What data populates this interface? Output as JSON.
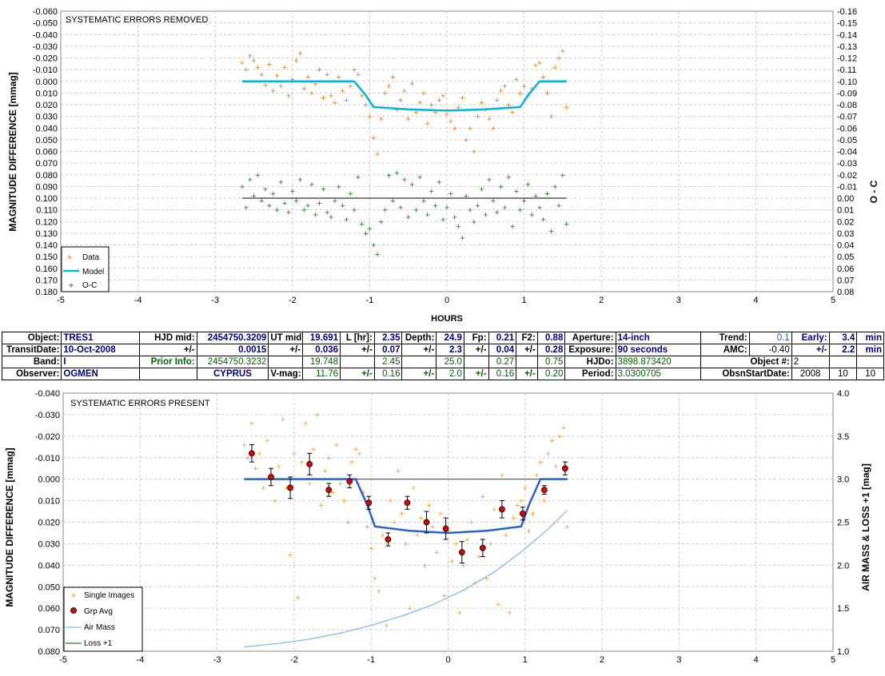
{
  "colors": {
    "data": "#e07b10",
    "model": "#00b4e6",
    "oc": "#1c7a1c",
    "single": "#f0a020",
    "grp": "#e00000",
    "model2": "#2a5fd6",
    "airmass": "#7ab8e8",
    "loss": "#1c7a1c"
  },
  "chart_data": [
    {
      "type": "scatter",
      "title": "SYSTEMATIC ERRORS REMOVED",
      "xlabel": "HOURS",
      "ylabel": "MAGNITUDE DIFFERENCE [mmag]",
      "y2label": "O - C",
      "xlim": [
        -5,
        5
      ],
      "ylim": [
        -0.06,
        0.18
      ],
      "y2lim": [
        -0.16,
        0.08
      ],
      "xticks": [
        "-5",
        "-4",
        "-3",
        "-2",
        "-1",
        "0",
        "1",
        "2",
        "3",
        "4",
        "5"
      ],
      "yticks": [
        "-0.060",
        "-0.050",
        "-0.040",
        "-0.030",
        "-0.020",
        "-0.010",
        "0.000",
        "0.010",
        "0.020",
        "0.030",
        "0.040",
        "0.050",
        "0.060",
        "0.070",
        "0.080",
        "0.090",
        "0.100",
        "0.110",
        "0.120",
        "0.130",
        "0.140",
        "0.150",
        "0.160",
        "0.170",
        "0.180"
      ],
      "y2ticks": [
        "-0.16",
        "-0.15",
        "-0.14",
        "-0.13",
        "-0.12",
        "-0.11",
        "-0.10",
        "-0.09",
        "-0.08",
        "-0.07",
        "-0.06",
        "-0.05",
        "-0.04",
        "-0.03",
        "-0.02",
        "-0.01",
        "0.00",
        "0.01",
        "0.02",
        "0.03",
        "0.04",
        "0.05",
        "0.06",
        "0.07",
        "0.08"
      ],
      "grid": true,
      "legend_position": "bottom-left",
      "legend": [
        "Data",
        "Model",
        "O-C"
      ],
      "series": [
        {
          "name": "Data",
          "x": [
            -2.65,
            -2.6,
            -2.55,
            -2.5,
            -2.45,
            -2.4,
            -2.35,
            -2.3,
            -2.25,
            -2.2,
            -2.15,
            -2.1,
            -2.05,
            -2.0,
            -1.95,
            -1.9,
            -1.85,
            -1.8,
            -1.75,
            -1.7,
            -1.65,
            -1.6,
            -1.55,
            -1.5,
            -1.45,
            -1.4,
            -1.35,
            -1.3,
            -1.25,
            -1.2,
            -1.15,
            -1.1,
            -1.05,
            -1.0,
            -0.95,
            -0.9,
            -0.85,
            -0.8,
            -0.75,
            -0.7,
            -0.65,
            -0.6,
            -0.55,
            -0.5,
            -0.45,
            -0.4,
            -0.35,
            -0.3,
            -0.25,
            -0.2,
            -0.15,
            -0.1,
            -0.05,
            0.0,
            0.05,
            0.1,
            0.15,
            0.2,
            0.25,
            0.3,
            0.35,
            0.4,
            0.45,
            0.5,
            0.55,
            0.6,
            0.65,
            0.7,
            0.75,
            0.8,
            0.85,
            0.9,
            0.95,
            1.0,
            1.05,
            1.1,
            1.15,
            1.2,
            1.25,
            1.3,
            1.35,
            1.4,
            1.45,
            1.5,
            1.55
          ],
          "y": [
            -0.016,
            -0.01,
            -0.022,
            -0.018,
            -0.012,
            -0.006,
            0.003,
            -0.015,
            0.008,
            -0.005,
            0.004,
            -0.012,
            0.012,
            -0.002,
            -0.018,
            -0.024,
            0.006,
            -0.004,
            0.01,
            0.002,
            -0.01,
            0.014,
            -0.006,
            0.012,
            0.018,
            -0.004,
            0.008,
            0.016,
            0.004,
            -0.01,
            -0.006,
            0.012,
            0.02,
            0.03,
            0.048,
            0.062,
            0.032,
            0.01,
            0.004,
            -0.004,
            0.024,
            0.016,
            0.008,
            0.032,
            0.002,
            0.026,
            0.018,
            0.01,
            0.036,
            0.02,
            0.026,
            0.016,
            0.012,
            0.028,
            0.034,
            0.04,
            0.022,
            0.014,
            0.05,
            0.04,
            0.06,
            0.03,
            0.018,
            0.024,
            0.032,
            0.04,
            0.016,
            0.008,
            0.004,
            0.02,
            0.026,
            -0.002,
            0.01,
            0.004,
            0.012,
            0.006,
            -0.014,
            -0.016,
            -0.004,
            0.01,
            0.03,
            -0.012,
            -0.02,
            -0.026,
            0.022
          ]
        },
        {
          "name": "Model",
          "x": [
            -2.65,
            -1.2,
            -1.05,
            -0.95,
            -0.5,
            0.0,
            0.5,
            0.95,
            1.05,
            1.2,
            1.55
          ],
          "y": [
            0.0,
            0.0,
            0.012,
            0.022,
            0.024,
            0.025,
            0.024,
            0.022,
            0.012,
            0.0,
            0.0
          ]
        },
        {
          "name": "O-C",
          "x": [
            -2.65,
            -2.6,
            -2.55,
            -2.5,
            -2.45,
            -2.4,
            -2.35,
            -2.3,
            -2.25,
            -2.2,
            -2.15,
            -2.1,
            -2.05,
            -2.0,
            -1.95,
            -1.9,
            -1.85,
            -1.8,
            -1.75,
            -1.7,
            -1.65,
            -1.6,
            -1.55,
            -1.5,
            -1.45,
            -1.4,
            -1.35,
            -1.3,
            -1.25,
            -1.2,
            -1.15,
            -1.1,
            -1.05,
            -1.0,
            -0.95,
            -0.9,
            -0.85,
            -0.8,
            -0.75,
            -0.7,
            -0.65,
            -0.6,
            -0.55,
            -0.5,
            -0.45,
            -0.4,
            -0.35,
            -0.3,
            -0.25,
            -0.2,
            -0.15,
            -0.1,
            -0.05,
            0.0,
            0.05,
            0.1,
            0.15,
            0.2,
            0.25,
            0.3,
            0.35,
            0.4,
            0.45,
            0.5,
            0.55,
            0.6,
            0.65,
            0.7,
            0.75,
            0.8,
            0.85,
            0.9,
            0.95,
            1.0,
            1.05,
            1.1,
            1.15,
            1.2,
            1.25,
            1.3,
            1.35,
            1.4,
            1.45,
            1.5,
            1.55
          ],
          "y": [
            -0.01,
            0.008,
            -0.016,
            -0.002,
            -0.02,
            0.002,
            -0.008,
            0.006,
            -0.004,
            0.01,
            -0.014,
            0.004,
            0.012,
            -0.006,
            0.002,
            -0.016,
            0.01,
            0.006,
            -0.012,
            0.014,
            0.004,
            -0.008,
            0.012,
            0.016,
            0.002,
            -0.01,
            0.006,
            0.018,
            -0.004,
            0.01,
            -0.018,
            0.022,
            0.03,
            0.026,
            0.04,
            0.048,
            0.02,
            0.01,
            -0.02,
            0.002,
            -0.022,
            0.008,
            -0.016,
            0.016,
            -0.012,
            0.01,
            -0.018,
            0.002,
            0.014,
            -0.006,
            0.006,
            -0.014,
            0.018,
            0.008,
            -0.004,
            0.016,
            0.024,
            0.034,
            -0.002,
            0.01,
            0.02,
            0.006,
            -0.008,
            0.014,
            -0.016,
            0.002,
            0.012,
            -0.01,
            0.008,
            -0.018,
            0.024,
            -0.006,
            0.01,
            0.002,
            -0.012,
            0.014,
            -0.002,
            0.008,
            0.018,
            -0.004,
            0.028,
            -0.01,
            0.006,
            -0.02,
            0.022
          ]
        }
      ]
    },
    {
      "type": "scatter",
      "title": "SYSTEMATIC ERRORS PRESENT",
      "xlabel": "",
      "ylabel": "MAGNITUDE DIFFERENCE [mmag]",
      "y2label": "AIR MASS & LOSS +1 [mag]",
      "xlim": [
        -5,
        5
      ],
      "ylim": [
        -0.04,
        0.08
      ],
      "y2lim": [
        4.0,
        1.0
      ],
      "xticks": [
        "-5",
        "-4",
        "-3",
        "-2",
        "-1",
        "0",
        "1",
        "2",
        "3",
        "4",
        "5"
      ],
      "yticks": [
        "-0.040",
        "-0.030",
        "-0.020",
        "-0.010",
        "0.000",
        "0.010",
        "0.020",
        "0.030",
        "0.040",
        "0.050",
        "0.060",
        "0.070",
        "0.080"
      ],
      "y2ticks": [
        "4.0",
        "3.5",
        "3.0",
        "2.5",
        "2.0",
        "1.5",
        "1.0"
      ],
      "grid": true,
      "legend_position": "bottom-left",
      "legend": [
        "Single Images",
        "Grp Avg",
        "Air Mass",
        "Loss +1"
      ],
      "series": [
        {
          "name": "Single Images",
          "x": [
            -2.65,
            -2.6,
            -2.55,
            -2.5,
            -2.45,
            -2.4,
            -2.35,
            -2.3,
            -2.25,
            -2.2,
            -2.15,
            -2.1,
            -2.05,
            -2.0,
            -1.95,
            -1.9,
            -1.85,
            -1.8,
            -1.75,
            -1.7,
            -1.65,
            -1.6,
            -1.55,
            -1.5,
            -1.45,
            -1.4,
            -1.35,
            -1.3,
            -1.25,
            -1.2,
            -1.15,
            -1.1,
            -1.05,
            -1.0,
            -0.95,
            -0.9,
            -0.85,
            -0.8,
            -0.75,
            -0.7,
            -0.65,
            -0.6,
            -0.55,
            -0.5,
            -0.45,
            -0.4,
            -0.35,
            -0.3,
            -0.25,
            -0.2,
            -0.15,
            -0.1,
            -0.05,
            0.0,
            0.05,
            0.1,
            0.15,
            0.2,
            0.25,
            0.3,
            0.35,
            0.4,
            0.45,
            0.5,
            0.55,
            0.6,
            0.65,
            0.7,
            0.75,
            0.8,
            0.85,
            0.9,
            0.95,
            1.0,
            1.05,
            1.1,
            1.15,
            1.2,
            1.25,
            1.3,
            1.35,
            1.4,
            1.45,
            1.5,
            1.55
          ],
          "y": [
            -0.016,
            -0.01,
            -0.026,
            -0.005,
            -0.012,
            0.004,
            -0.018,
            -0.002,
            0.01,
            -0.006,
            -0.028,
            0.004,
            0.035,
            -0.012,
            0.055,
            -0.008,
            -0.026,
            0.002,
            -0.014,
            -0.03,
            0.012,
            -0.004,
            -0.01,
            0.006,
            -0.016,
            0.002,
            0.01,
            0.02,
            -0.008,
            -0.014,
            -0.012,
            0.006,
            0.022,
            0.032,
            0.046,
            0.052,
            0.026,
            0.068,
            0.01,
            0.02,
            -0.004,
            0.016,
            0.03,
            0.06,
            0.004,
            0.026,
            0.018,
            0.04,
            0.012,
            0.022,
            0.034,
            0.016,
            0.054,
            0.024,
            0.038,
            0.03,
            0.062,
            0.04,
            0.028,
            0.02,
            0.048,
            0.036,
            0.008,
            0.046,
            0.03,
            0.014,
            0.058,
            -0.002,
            0.026,
            0.062,
            0.018,
            0.012,
            0.01,
            0.004,
            0.024,
            0.016,
            -0.002,
            -0.008,
            0.01,
            -0.012,
            -0.018,
            -0.006,
            -0.02,
            -0.024,
            0.022
          ]
        },
        {
          "name": "Grp Avg",
          "x": [
            -2.55,
            -2.3,
            -2.05,
            -1.8,
            -1.55,
            -1.28,
            -1.03,
            -0.78,
            -0.53,
            -0.28,
            -0.03,
            0.18,
            0.45,
            0.7,
            0.97,
            1.25,
            1.52
          ],
          "y": [
            -0.012,
            -0.001,
            0.004,
            -0.007,
            0.005,
            0.001,
            0.011,
            0.028,
            0.011,
            0.02,
            0.023,
            0.034,
            0.032,
            0.014,
            0.016,
            0.005,
            -0.005
          ],
          "err": [
            0.004,
            0.004,
            0.005,
            0.005,
            0.003,
            0.003,
            0.003,
            0.003,
            0.003,
            0.005,
            0.005,
            0.005,
            0.004,
            0.004,
            0.003,
            0.002,
            0.003
          ]
        },
        {
          "name": "Model",
          "x": [
            -2.65,
            -1.2,
            -1.05,
            -0.95,
            -0.5,
            0.0,
            0.5,
            0.95,
            1.05,
            1.2,
            1.55
          ],
          "y": [
            0.0,
            0.0,
            0.012,
            0.022,
            0.024,
            0.025,
            0.024,
            0.022,
            0.012,
            0.0,
            0.0
          ]
        },
        {
          "name": "Air Mass",
          "x": [
            -2.65,
            -2.2,
            -1.8,
            -1.4,
            -1.0,
            -0.6,
            -0.2,
            0.2,
            0.6,
            1.0,
            1.3,
            1.55
          ],
          "y": [
            1.05,
            1.09,
            1.14,
            1.21,
            1.3,
            1.41,
            1.54,
            1.71,
            1.92,
            2.19,
            2.42,
            2.64
          ]
        },
        {
          "name": "Loss +1",
          "x": [
            -2.65,
            1.55
          ],
          "y": [
            3.0,
            3.0
          ]
        }
      ]
    }
  ],
  "info": {
    "object_label": "Object:",
    "object": "TRES1",
    "hjd_mid_label": "HJD mid:",
    "hjd_mid": "2454750.3209",
    "ut_mid_label": "UT mid:",
    "ut_mid": "19.691",
    "l_hr_label": "L [hr]:",
    "l_hr": "2.35",
    "depth_label": "Depth:",
    "depth": "24.9",
    "fp_label": "Fp:",
    "fp": "0.21",
    "f2_label": "F2:",
    "f2": "0.88",
    "aperture_label": "Aperture:",
    "aperture": "14-inch",
    "trend_label": "Trend:",
    "trend": "0.1",
    "early_label": "Early:",
    "early": "3.4",
    "min1": "min",
    "transitdate_label": "TransitDate:",
    "transitdate": "10-Oct-2008",
    "pm1": "+/-",
    "hjd_err": "0.0015",
    "pm2": "+/-",
    "ut_err": "0.036",
    "pm3": "+/-",
    "l_err": "0.07",
    "pm4": "+/-",
    "depth_err": "2.3",
    "pm5": "+/-",
    "fp_err": "0.04",
    "pm6": "+/-",
    "f2_err": "0.28",
    "exposure_label": "Exposure:",
    "exposure": "90 seconds",
    "amc_label": "AMC:",
    "amc": "-0.40",
    "pm7": "+/-",
    "early_err": "2.2",
    "min2": "min",
    "band_label": "Band:",
    "band": "I",
    "prior_label": "Prior Info:",
    "prior_hjd": "2454750.3232",
    "prior_ut": "19.748",
    "prior_l": "2.45",
    "prior_depth": "25.0",
    "prior_fp": "0.27",
    "prior_f2": "0.75",
    "hjdo_label": "HJDo:",
    "hjdo": "3898.873420",
    "objnum_label": "Object #:",
    "objnum": "2",
    "observer_label": "Observer:",
    "observer": "OGMEN",
    "location": "CYPRUS",
    "vmag_label": "V-mag:",
    "vmag": "11.76",
    "pm8": "+/-",
    "prior_l_err": "0.16",
    "pm9": "+/-",
    "prior_depth_err": "2.0",
    "pm10": "+/-",
    "prior_fp_err": "0.16",
    "pm11": "+/-",
    "prior_f2_err": "0.20",
    "period_label": "Period:",
    "period": "3.0300705",
    "obsstart_label": "ObsnStartDate:",
    "obs_year": "2008",
    "obs_month": "10",
    "obs_day": "10"
  }
}
